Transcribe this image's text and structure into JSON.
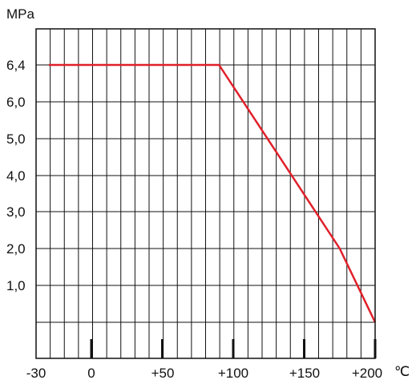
{
  "chart_data": {
    "type": "line",
    "ylabel": "MPa",
    "xunit": "℃",
    "x_tick_labels": [
      "-30",
      "0",
      "+50",
      "+100",
      "+150",
      "+200"
    ],
    "y_tick_labels": [
      "6,4",
      "6,0",
      "5,0",
      "4,0",
      "3,0",
      "2,0",
      "1,0"
    ],
    "series": [
      {
        "color": "#e0202a",
        "x": [
          -30,
          90,
          175,
          200
        ],
        "y": [
          6.4,
          6.4,
          2.0,
          0
        ]
      }
    ],
    "grid": true,
    "legend": "none"
  }
}
